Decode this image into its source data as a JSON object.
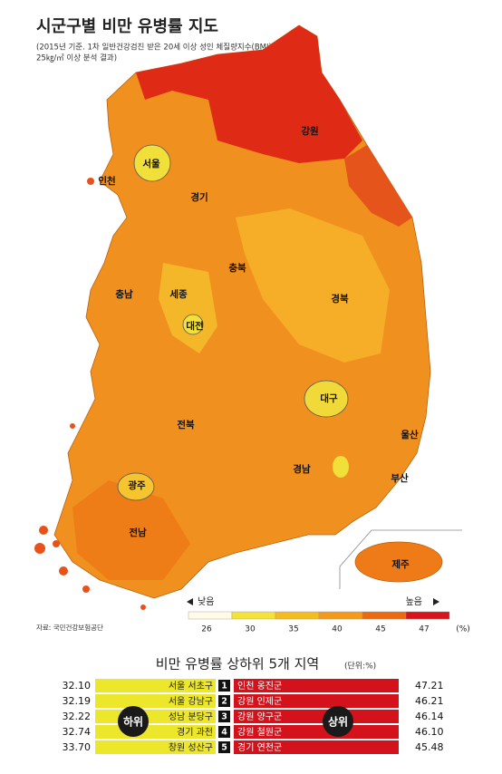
{
  "header": {
    "title": "시군구별 비만 유병률 지도",
    "subtitle_lines": [
      "(2015년 기준. 1차 일반건강검진 받은 20세 이상 성인 체질량지수(BMI)",
      "25㎏/㎡ 이상 분석 결과)"
    ]
  },
  "map": {
    "regions": [
      {
        "label": "서울"
      },
      {
        "label": "인천"
      },
      {
        "label": "경기"
      },
      {
        "label": "강원"
      },
      {
        "label": "충북"
      },
      {
        "label": "충남"
      },
      {
        "label": "세종"
      },
      {
        "label": "대전"
      },
      {
        "label": "경북"
      },
      {
        "label": "대구"
      },
      {
        "label": "전북"
      },
      {
        "label": "울산"
      },
      {
        "label": "경남"
      },
      {
        "label": "부산"
      },
      {
        "label": "광주"
      },
      {
        "label": "전남"
      },
      {
        "label": "제주"
      }
    ]
  },
  "legend": {
    "low": "낮음",
    "high": "높음",
    "unit": "(%)",
    "ticks": [
      26,
      30,
      35,
      40,
      45,
      47
    ],
    "colors": [
      "#fffbe6",
      "#f4e23a",
      "#f5bc22",
      "#f39a1c",
      "#ea6a12",
      "#d8141b"
    ]
  },
  "source": "자료: 국민건강보험공단",
  "ranking": {
    "title": "비만 유병률 상하위 5개 지역",
    "unit": "(단위:%)",
    "bottom_label": "하위",
    "top_label": "상위",
    "rows": [
      {
        "low_value": "32.10",
        "low_region": "서울 서초구",
        "rank": 1,
        "high_region": "인천 옹진군",
        "high_value": "47.21"
      },
      {
        "low_value": "32.19",
        "low_region": "서울 강남구",
        "rank": 2,
        "high_region": "강원 인제군",
        "high_value": "46.21"
      },
      {
        "low_value": "32.22",
        "low_region": "성남 분당구",
        "rank": 3,
        "high_region": "강원 양구군",
        "high_value": "46.14"
      },
      {
        "low_value": "32.74",
        "low_region": "경기 과천",
        "rank": 4,
        "high_region": "강원 철원군",
        "high_value": "46.10"
      },
      {
        "low_value": "33.70",
        "low_region": "창원 성산구",
        "rank": 5,
        "high_region": "경기 연천군",
        "high_value": "45.48"
      }
    ]
  }
}
